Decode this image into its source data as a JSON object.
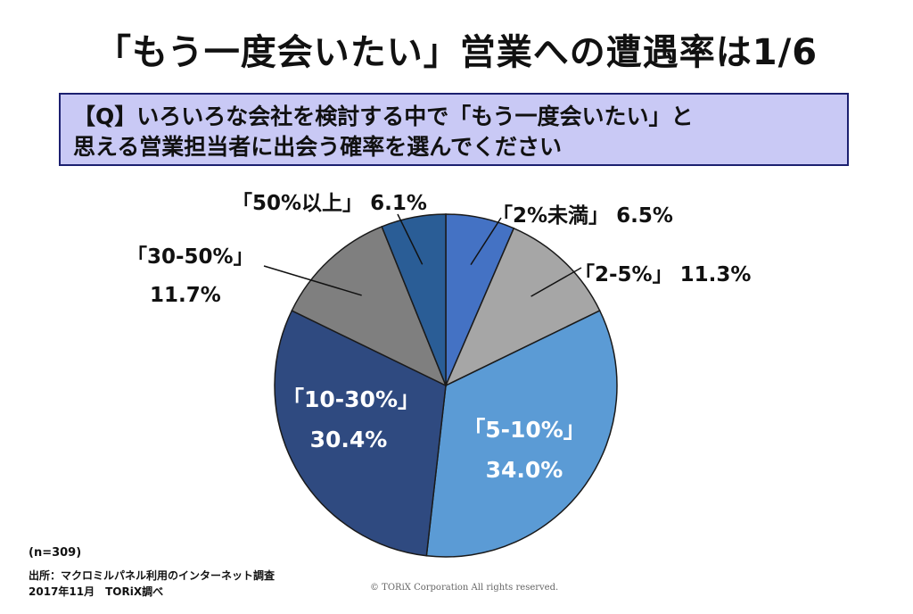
{
  "title": "「もう一度会いたい」営業への遭遇率は1/6",
  "question": {
    "line1": "【Q】いろいろな会社を検討する中で「もう一度会いたい」と",
    "line2": "思える営業担当者に出会う確率を選んでください"
  },
  "chart_data": {
    "type": "pie",
    "start_angle_deg": 0,
    "direction": "clockwise",
    "slices": [
      {
        "label": "「2%未満」",
        "value": 6.5,
        "value_label": "6.5%",
        "color": "#4472c4"
      },
      {
        "label": "「2-5%」",
        "value": 11.3,
        "value_label": "11.3%",
        "color": "#a6a6a6"
      },
      {
        "label": "「5-10%」",
        "value": 34.0,
        "value_label": "34.0%",
        "color": "#5b9bd5"
      },
      {
        "label": "「10-30%」",
        "value": 30.4,
        "value_label": "30.4%",
        "color": "#2f4a80"
      },
      {
        "label": "「30-50%」",
        "value": 11.7,
        "value_label": "11.7%",
        "color": "#7f7f7f"
      },
      {
        "label": "「50%以上」",
        "value": 6.1,
        "value_label": "6.1%",
        "color": "#2a5d96"
      }
    ]
  },
  "footnote": {
    "n": "(n=309)",
    "source": "出所：マクロミルパネル利用のインターネット調査",
    "date": "2017年11月　TORiX調べ"
  },
  "copyright": "© TORiX Corporation All rights reserved."
}
